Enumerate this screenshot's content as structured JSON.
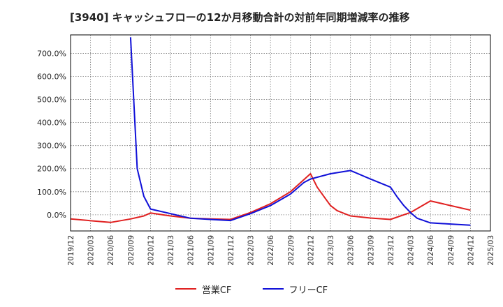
{
  "chart_data": {
    "type": "line",
    "title": "[3940]  キャッシュフローの12か月移動合計の対前年同期増減率の推移",
    "xlabel": "",
    "ylabel": "",
    "ylim": [
      -70,
      780
    ],
    "yticks": [
      0,
      100,
      200,
      300,
      400,
      500,
      600,
      700
    ],
    "ytick_labels": [
      "0.0%",
      "100.0%",
      "200.0%",
      "300.0%",
      "400.0%",
      "500.0%",
      "600.0%",
      "700.0%"
    ],
    "xticks": [
      "2019/12",
      "2020/03",
      "2020/06",
      "2020/09",
      "2020/12",
      "2021/03",
      "2021/06",
      "2021/09",
      "2021/12",
      "2022/03",
      "2022/06",
      "2022/09",
      "2022/12",
      "2023/03",
      "2023/06",
      "2023/09",
      "2023/12",
      "2024/03",
      "2024/06",
      "2024/09",
      "2024/12",
      "2025/03"
    ],
    "grid": true,
    "legend_position": "bottom-center",
    "series": [
      {
        "name": "営業CF",
        "color": "#e02020",
        "points": [
          [
            0,
            -18
          ],
          [
            6,
            -33
          ],
          [
            9,
            -18
          ],
          [
            11,
            -5
          ],
          [
            12,
            8
          ],
          [
            15,
            -5
          ],
          [
            18,
            -15
          ],
          [
            21,
            -18
          ],
          [
            24,
            -20
          ],
          [
            27,
            10
          ],
          [
            30,
            48
          ],
          [
            33,
            100
          ],
          [
            36,
            178
          ],
          [
            37,
            120
          ],
          [
            38,
            80
          ],
          [
            39,
            40
          ],
          [
            40,
            18
          ],
          [
            42,
            -5
          ],
          [
            45,
            -14
          ],
          [
            48,
            -20
          ],
          [
            51,
            10
          ],
          [
            54,
            60
          ],
          [
            57,
            40
          ],
          [
            60,
            20
          ]
        ]
      },
      {
        "name": "フリーCF",
        "color": "#1010d8",
        "points": [
          [
            9,
            770
          ],
          [
            10,
            200
          ],
          [
            11,
            80
          ],
          [
            12,
            25
          ],
          [
            15,
            5
          ],
          [
            18,
            -15
          ],
          [
            21,
            -20
          ],
          [
            24,
            -25
          ],
          [
            27,
            5
          ],
          [
            30,
            40
          ],
          [
            33,
            90
          ],
          [
            35,
            140
          ],
          [
            36,
            155
          ],
          [
            39,
            178
          ],
          [
            42,
            192
          ],
          [
            45,
            155
          ],
          [
            48,
            120
          ],
          [
            49,
            78
          ],
          [
            50,
            40
          ],
          [
            51,
            10
          ],
          [
            52,
            -15
          ],
          [
            54,
            -35
          ],
          [
            57,
            -40
          ],
          [
            60,
            -45
          ]
        ]
      }
    ]
  }
}
